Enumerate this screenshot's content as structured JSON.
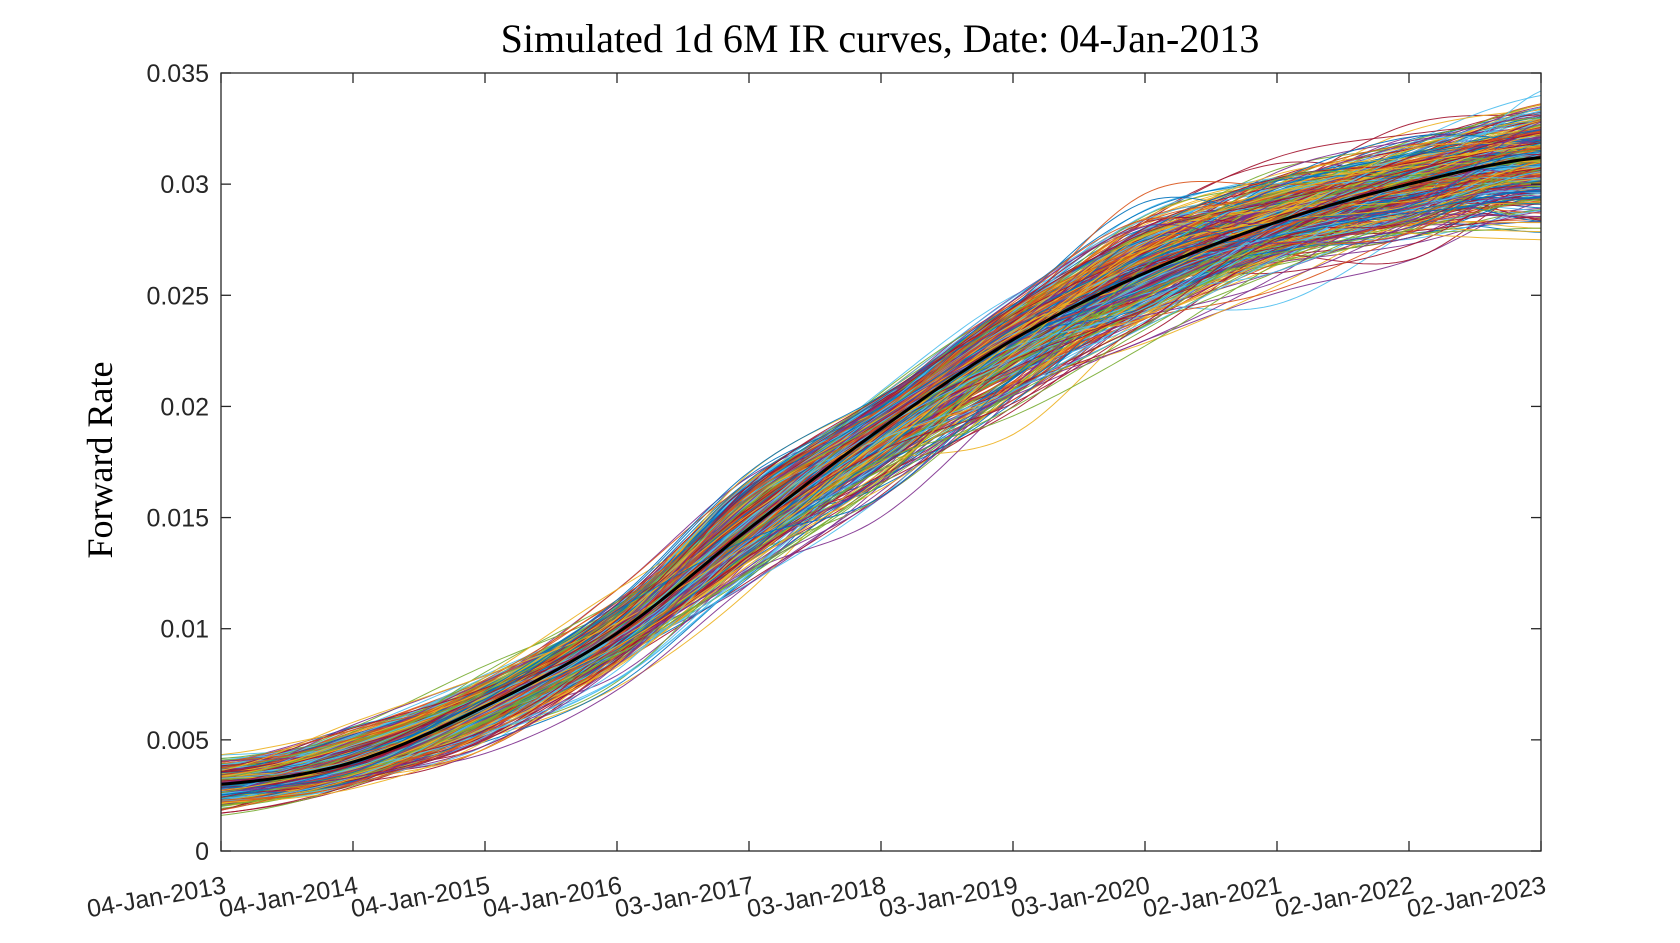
{
  "chart_data": {
    "type": "line",
    "title": "Simulated 1d 6M IR curves, Date: 04-Jan-2013",
    "ylabel": "Forward Rate",
    "xlabel": "",
    "ylim": [
      0,
      0.035
    ],
    "xlim": [
      "04-Jan-2013",
      "02-Jan-2023"
    ],
    "grid": false,
    "legend": "none",
    "x_ticks": [
      "04-Jan-2013",
      "04-Jan-2014",
      "04-Jan-2015",
      "04-Jan-2016",
      "03-Jan-2017",
      "03-Jan-2018",
      "03-Jan-2019",
      "03-Jan-2020",
      "02-Jan-2021",
      "02-Jan-2022",
      "02-Jan-2023"
    ],
    "y_ticks": [
      "0",
      "0.005",
      "0.01",
      "0.015",
      "0.02",
      "0.025",
      "0.03",
      "0.035"
    ],
    "y_tick_values": [
      0,
      0.005,
      0.01,
      0.015,
      0.02,
      0.025,
      0.03,
      0.035
    ],
    "mean_curve": {
      "color": "#000000",
      "x": [
        "04-Jan-2013",
        "04-Jan-2014",
        "04-Jan-2015",
        "04-Jan-2016",
        "03-Jan-2017",
        "03-Jan-2018",
        "03-Jan-2019",
        "03-Jan-2020",
        "02-Jan-2021",
        "02-Jan-2022",
        "02-Jan-2023"
      ],
      "values": [
        0.003,
        0.004,
        0.0065,
        0.0098,
        0.0145,
        0.019,
        0.023,
        0.026,
        0.0283,
        0.03,
        0.0312
      ]
    },
    "simulated_curves": {
      "count": 500,
      "colors": [
        "#0072bd",
        "#d95319",
        "#edb120",
        "#7e2f8e",
        "#77ac30",
        "#4dbeee",
        "#a2142f"
      ],
      "value_range_at_ticks": {
        "low": [
          0.0016,
          0.0022,
          0.0035,
          0.0068,
          0.011,
          0.0145,
          0.018,
          0.0215,
          0.0245,
          0.026,
          0.0275
        ],
        "high": [
          0.0046,
          0.0068,
          0.0088,
          0.0125,
          0.0185,
          0.0215,
          0.026,
          0.0305,
          0.0323,
          0.0335,
          0.0345
        ]
      }
    }
  }
}
